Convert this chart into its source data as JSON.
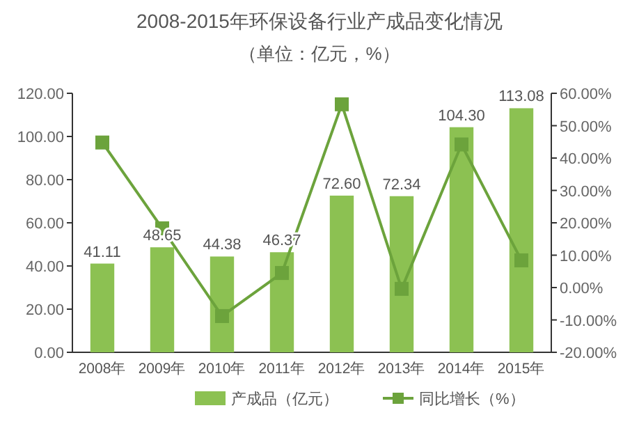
{
  "chart_data": {
    "type": "bar",
    "title": "2008-2015年环保设备行业产成品变化情况",
    "subtitle": "（单位：亿元，%）",
    "categories": [
      "2008年",
      "2009年",
      "2010年",
      "2011年",
      "2012年",
      "2013年",
      "2014年",
      "2015年"
    ],
    "series": [
      {
        "name": "产成品（亿元）",
        "color": "#8cc152",
        "values": [
          41.11,
          48.65,
          44.38,
          46.37,
          72.6,
          72.34,
          104.3,
          113.08
        ],
        "value_labels": [
          "41.11",
          "48.65",
          "44.38",
          "46.37",
          "72.60",
          "72.34",
          "104.30",
          "113.08"
        ]
      },
      {
        "name": "同比增长（%）",
        "type": "line",
        "axis": "y2",
        "color": "#6ca33c",
        "marker": "square",
        "values": [
          44.8,
          18.3,
          -8.8,
          4.5,
          56.6,
          -0.4,
          44.2,
          8.4
        ]
      }
    ],
    "ylim": [
      0,
      120
    ],
    "yticks": [
      {
        "value": 0,
        "label": "0.00"
      },
      {
        "value": 20,
        "label": "20.00"
      },
      {
        "value": 40,
        "label": "40.00"
      },
      {
        "value": 60,
        "label": "60.00"
      },
      {
        "value": 80,
        "label": "80.00"
      },
      {
        "value": 100,
        "label": "100.00"
      },
      {
        "value": 120,
        "label": "120.00"
      }
    ],
    "y2lim": [
      -20,
      60
    ],
    "y2ticks": [
      {
        "value": -20,
        "label": "-20.00%"
      },
      {
        "value": -10,
        "label": "-10.00%"
      },
      {
        "value": 0,
        "label": "0.00%"
      },
      {
        "value": 10,
        "label": "10.00%"
      },
      {
        "value": 20,
        "label": "20.00%"
      },
      {
        "value": 30,
        "label": "30.00%"
      },
      {
        "value": 40,
        "label": "40.00%"
      },
      {
        "value": 50,
        "label": "50.00%"
      },
      {
        "value": 60,
        "label": "60.00%"
      }
    ],
    "legend": "bottom"
  }
}
